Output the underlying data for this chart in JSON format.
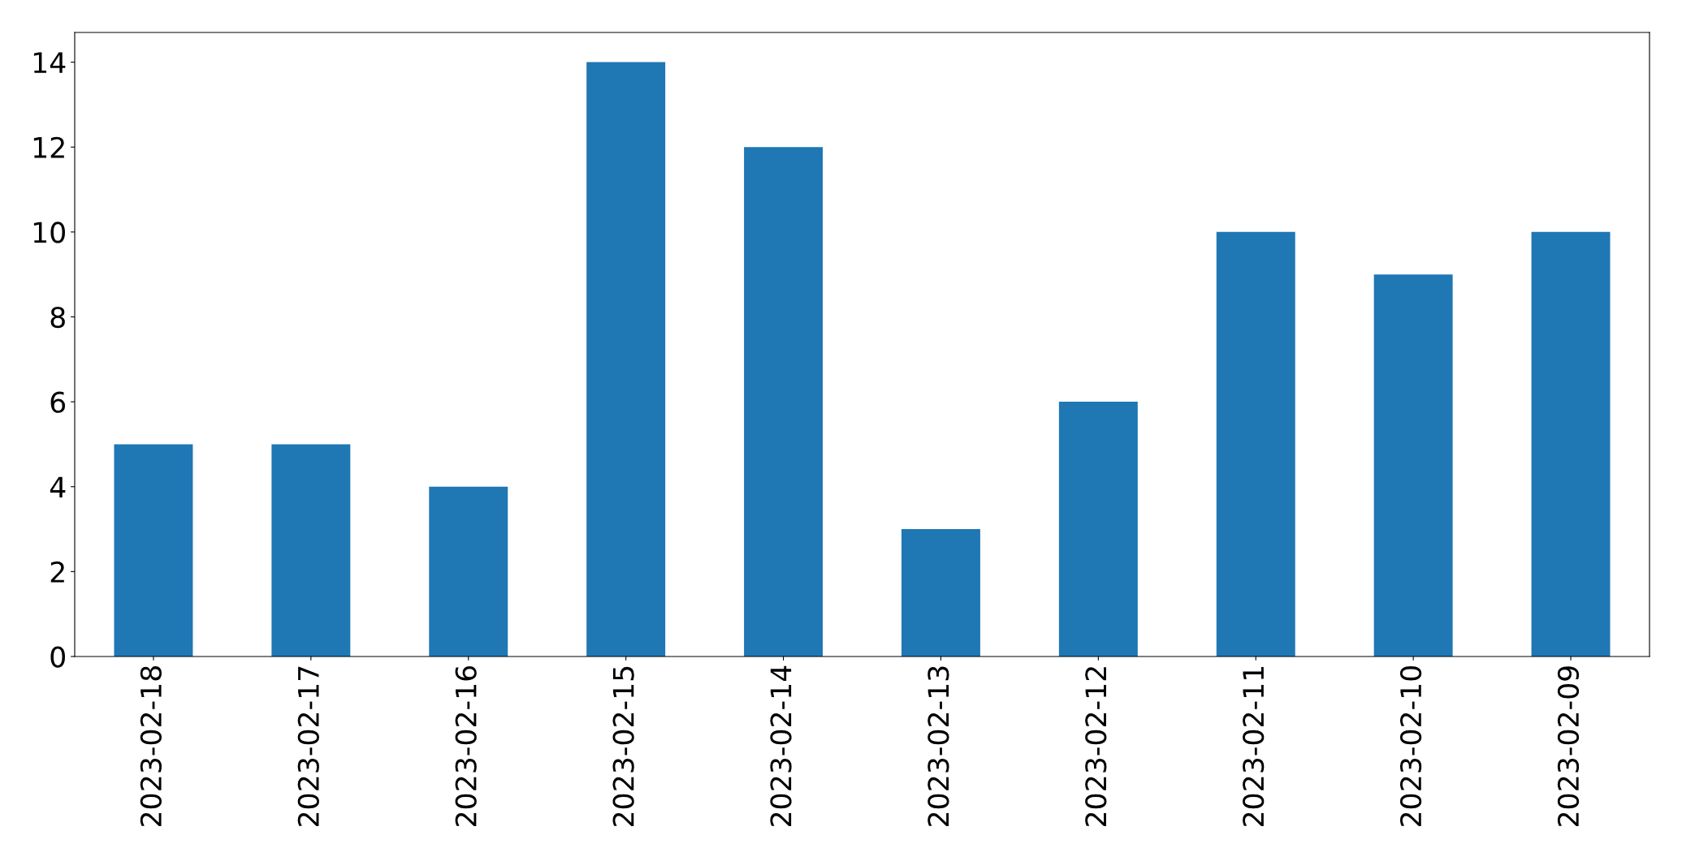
{
  "chart_data": {
    "type": "bar",
    "categories": [
      "2023-02-18",
      "2023-02-17",
      "2023-02-16",
      "2023-02-15",
      "2023-02-14",
      "2023-02-13",
      "2023-02-12",
      "2023-02-11",
      "2023-02-10",
      "2023-02-09"
    ],
    "values": [
      5,
      5,
      4,
      14,
      12,
      3,
      6,
      10,
      9,
      10
    ],
    "color": "#1f77b4",
    "ylim": [
      0,
      14.7
    ],
    "yticks": [
      0,
      2,
      4,
      6,
      8,
      10,
      12,
      14
    ],
    "grid": false,
    "legend": false
  }
}
